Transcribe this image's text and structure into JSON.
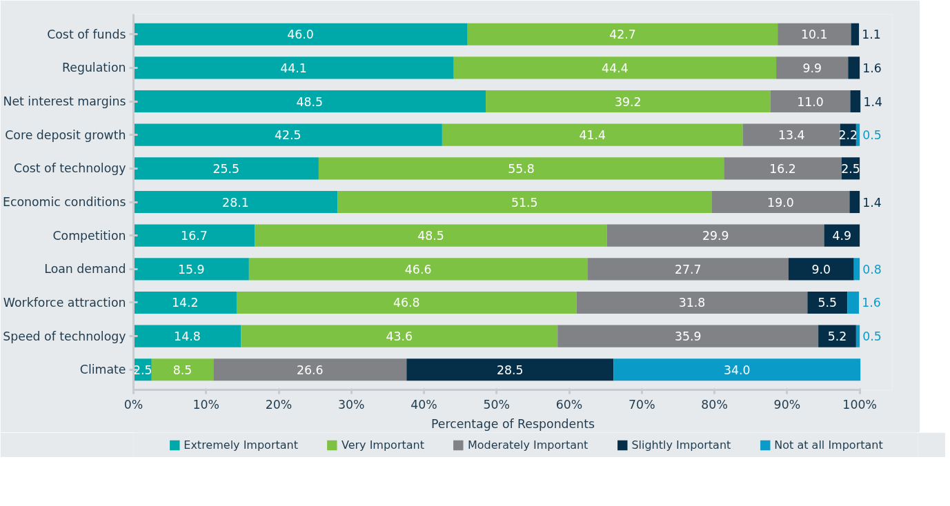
{
  "chart_data": {
    "type": "bar",
    "orientation": "horizontal",
    "stacked": true,
    "xlabel": "Percentage of Respondents",
    "categories": [
      "Cost of funds",
      "Regulation",
      "Net interest margins",
      "Core deposit growth",
      "Cost of technology",
      "Economic conditions",
      "Competition",
      "Loan demand",
      "Workforce attraction",
      "Speed of technology",
      "Climate"
    ],
    "series": [
      {
        "name": "Extremely Important",
        "color": "#00a9a9",
        "values": [
          46.0,
          44.1,
          48.5,
          42.5,
          25.5,
          28.1,
          16.7,
          15.9,
          14.2,
          14.8,
          2.5
        ],
        "value_labels": [
          "46.0",
          "44.1",
          "48.5",
          "42.5",
          "25.5",
          "28.1",
          "16.7",
          "15.9",
          "14.2",
          "14.8",
          "2.5"
        ]
      },
      {
        "name": "Very Important",
        "color": "#7dc242",
        "values": [
          42.7,
          44.4,
          39.2,
          41.4,
          55.8,
          51.5,
          48.5,
          46.6,
          46.8,
          43.6,
          8.5
        ],
        "value_labels": [
          "42.7",
          "44.4",
          "39.2",
          "41.4",
          "55.8",
          "51.5",
          "48.5",
          "46.6",
          "46.8",
          "43.6",
          "8.5"
        ]
      },
      {
        "name": "Moderately Important",
        "color": "#808285",
        "values": [
          10.1,
          9.9,
          11.0,
          13.4,
          16.2,
          19.0,
          29.9,
          27.7,
          31.8,
          35.9,
          26.6
        ],
        "value_labels": [
          "10.1",
          "9.9",
          "11.0",
          "13.4",
          "16.2",
          "19.0",
          "29.9",
          "27.7",
          "31.8",
          "35.9",
          "26.6"
        ]
      },
      {
        "name": "Slightly Important",
        "color": "#052e48",
        "values": [
          1.1,
          1.6,
          1.4,
          2.2,
          2.5,
          1.4,
          4.9,
          9.0,
          5.5,
          5.2,
          28.5
        ],
        "value_labels": [
          "1.1",
          "1.6",
          "1.4",
          "2.2",
          "2.5",
          "1.4",
          "4.9",
          "9.0",
          "5.5",
          "5.2",
          "28.5"
        ]
      },
      {
        "name": "Not at all Important",
        "color": "#0a9bc8",
        "values": [
          null,
          null,
          null,
          0.5,
          null,
          null,
          null,
          0.8,
          1.6,
          0.5,
          34.0
        ],
        "value_labels": [
          null,
          null,
          null,
          "0.5",
          null,
          null,
          null,
          "0.8",
          "1.6",
          "0.5",
          "34.0"
        ]
      }
    ],
    "xlim": [
      0,
      100
    ],
    "xticks": [
      {
        "value": 0,
        "label": "0%"
      },
      {
        "value": 10,
        "label": "10%"
      },
      {
        "value": 20,
        "label": "20%"
      },
      {
        "value": 30,
        "label": "30%"
      },
      {
        "value": 40,
        "label": "40%"
      },
      {
        "value": 50,
        "label": "50%"
      },
      {
        "value": 60,
        "label": "60%"
      },
      {
        "value": 70,
        "label": "70%"
      },
      {
        "value": 80,
        "label": "80%"
      },
      {
        "value": 90,
        "label": "90%"
      },
      {
        "value": 100,
        "label": "100%"
      }
    ],
    "grid": false,
    "legend": "bottom"
  }
}
